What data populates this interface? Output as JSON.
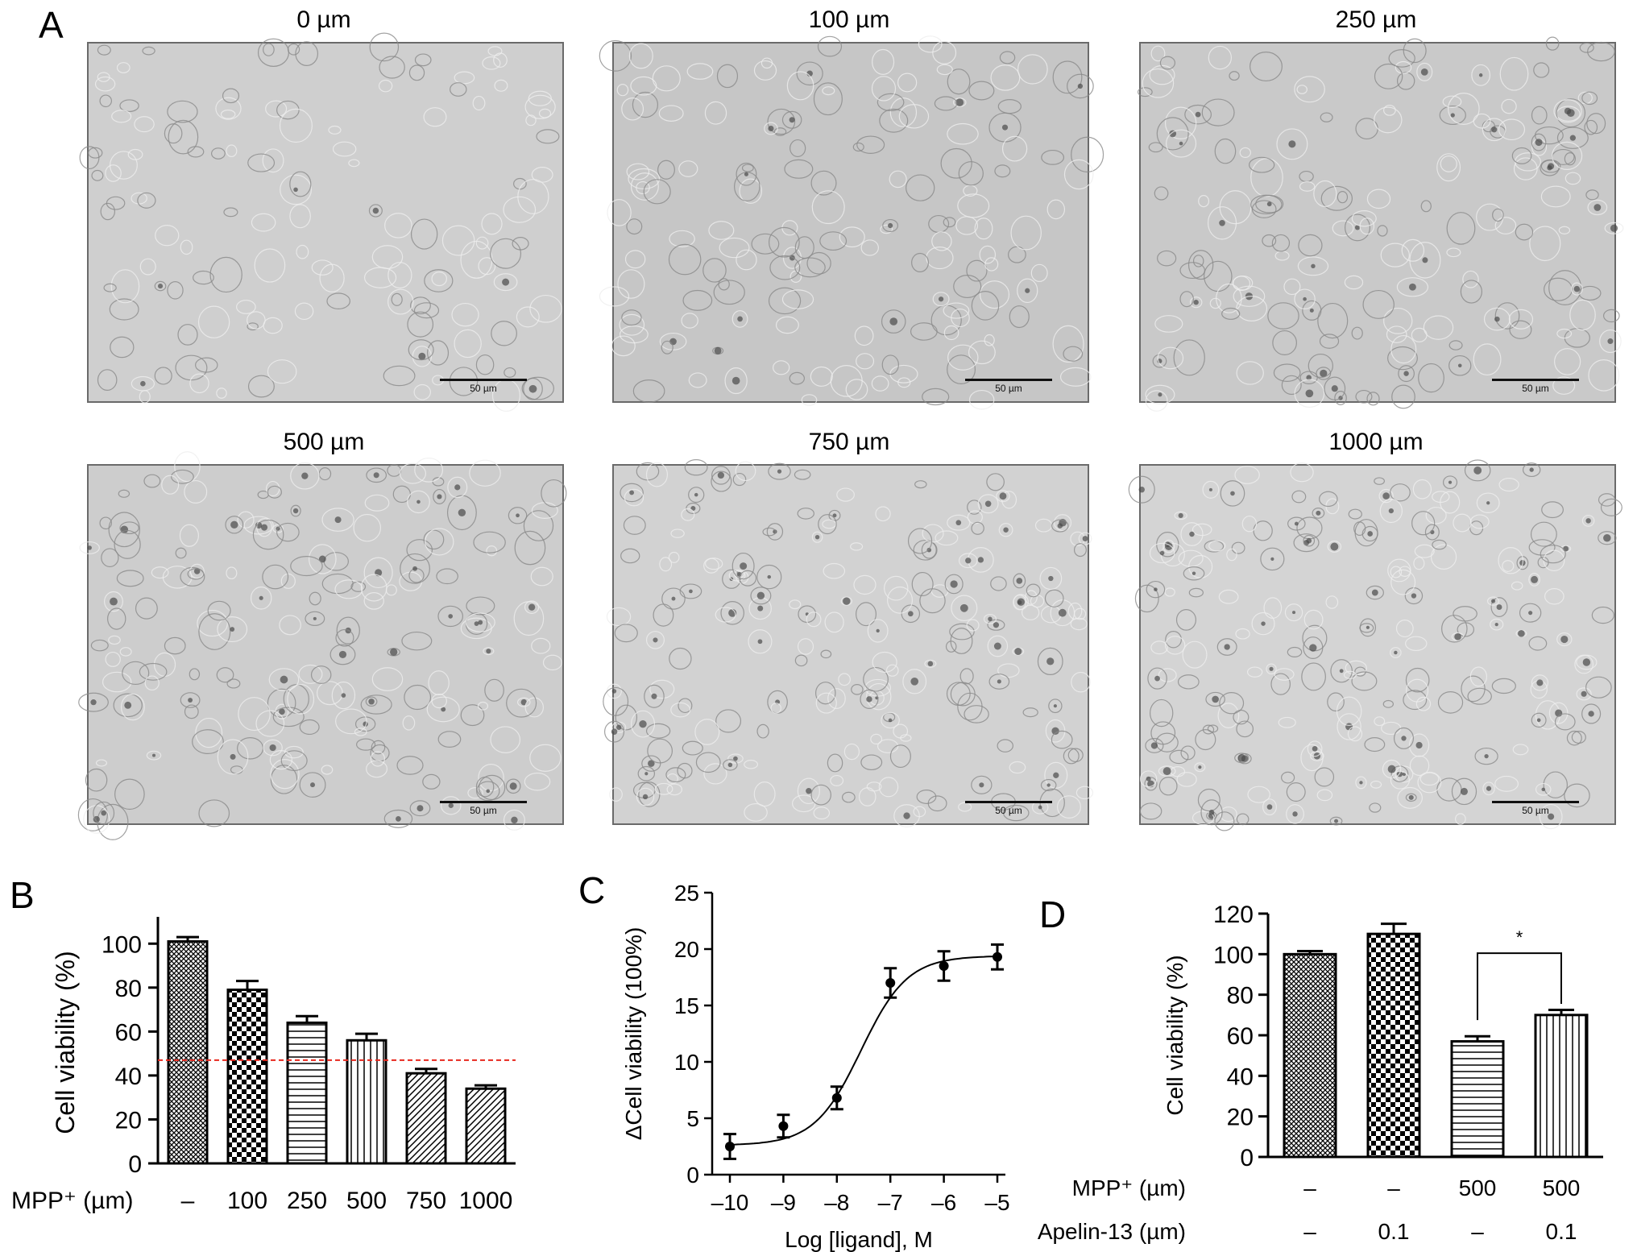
{
  "panel_a": {
    "letter": "A",
    "images": [
      {
        "title": "0 µm",
        "scale_label": "50 µm",
        "tone": "#cfcfcf",
        "density": 0.15
      },
      {
        "title": "100 µm",
        "scale_label": "50 µm",
        "tone": "#c6c6c6",
        "density": 0.35
      },
      {
        "title": "250 µm",
        "scale_label": "50 µm",
        "tone": "#c9c9c9",
        "density": 0.5
      },
      {
        "title": "500 µm",
        "scale_label": "50 µm",
        "tone": "#cdcdcd",
        "density": 0.6
      },
      {
        "title": "750 µm",
        "scale_label": "50 µm",
        "tone": "#d2d2d2",
        "density": 0.8
      },
      {
        "title": "1000 µm",
        "scale_label": "50 µm",
        "tone": "#d4d4d4",
        "density": 0.9
      }
    ]
  },
  "chart_data": [
    {
      "panel": "B",
      "type": "bar",
      "ylabel": "Cell viability (%)",
      "xlabel_prefix": "MPP⁺ (µm)",
      "categories": [
        "–",
        "100",
        "250",
        "500",
        "750",
        "1000"
      ],
      "values": [
        101,
        79,
        64,
        56,
        41,
        34
      ],
      "errors": [
        2,
        4,
        3,
        3,
        2,
        1.5
      ],
      "patterns": [
        "crosshatch",
        "checker",
        "hlines",
        "vlines",
        "diag",
        "diag"
      ],
      "ylim": [
        0,
        110
      ],
      "yticks": [
        0,
        20,
        40,
        60,
        80,
        100
      ],
      "reference_line": {
        "y": 47,
        "color": "#e8281e",
        "style": "dashed"
      }
    },
    {
      "panel": "C",
      "type": "line",
      "ylabel": "ΔCell viability (100%)",
      "xlabel": "Log [ligand], M",
      "x": [
        -10,
        -9,
        -8,
        -7,
        -6,
        -5
      ],
      "y": [
        2.5,
        4.3,
        6.8,
        17.0,
        18.5,
        19.3
      ],
      "errors": [
        1.1,
        1.0,
        1.0,
        1.3,
        1.3,
        1.1
      ],
      "fit": {
        "bottom": 2.6,
        "top": 19.4,
        "logEC50": -7.55,
        "hill": 1.0
      },
      "xlim": [
        -10,
        -5
      ],
      "ylim": [
        0,
        25
      ],
      "xticks": [
        "–10",
        "–9",
        "–8",
        "–7",
        "–6",
        "–5"
      ],
      "xtick_values": [
        -10,
        -9,
        -8,
        -7,
        -6,
        -5
      ],
      "yticks": [
        0,
        5,
        10,
        15,
        20,
        25
      ]
    },
    {
      "panel": "D",
      "type": "bar",
      "ylabel": "Cell viability (%)",
      "values": [
        100,
        110,
        57,
        70
      ],
      "errors": [
        1.5,
        5,
        2.5,
        2.5
      ],
      "patterns": [
        "crosshatch",
        "checker",
        "hlines",
        "vlines"
      ],
      "ylim": [
        0,
        120
      ],
      "yticks": [
        0,
        20,
        40,
        60,
        80,
        100,
        120
      ],
      "significance": {
        "from": 2,
        "to": 3,
        "label": "*"
      },
      "row_labels": [
        {
          "label": "MPP⁺ (µm)",
          "values": [
            "–",
            "–",
            "500",
            "500"
          ]
        },
        {
          "label": "Apelin-13 (µm)",
          "values": [
            "–",
            "0.1",
            "–",
            "0.1"
          ]
        }
      ]
    }
  ]
}
